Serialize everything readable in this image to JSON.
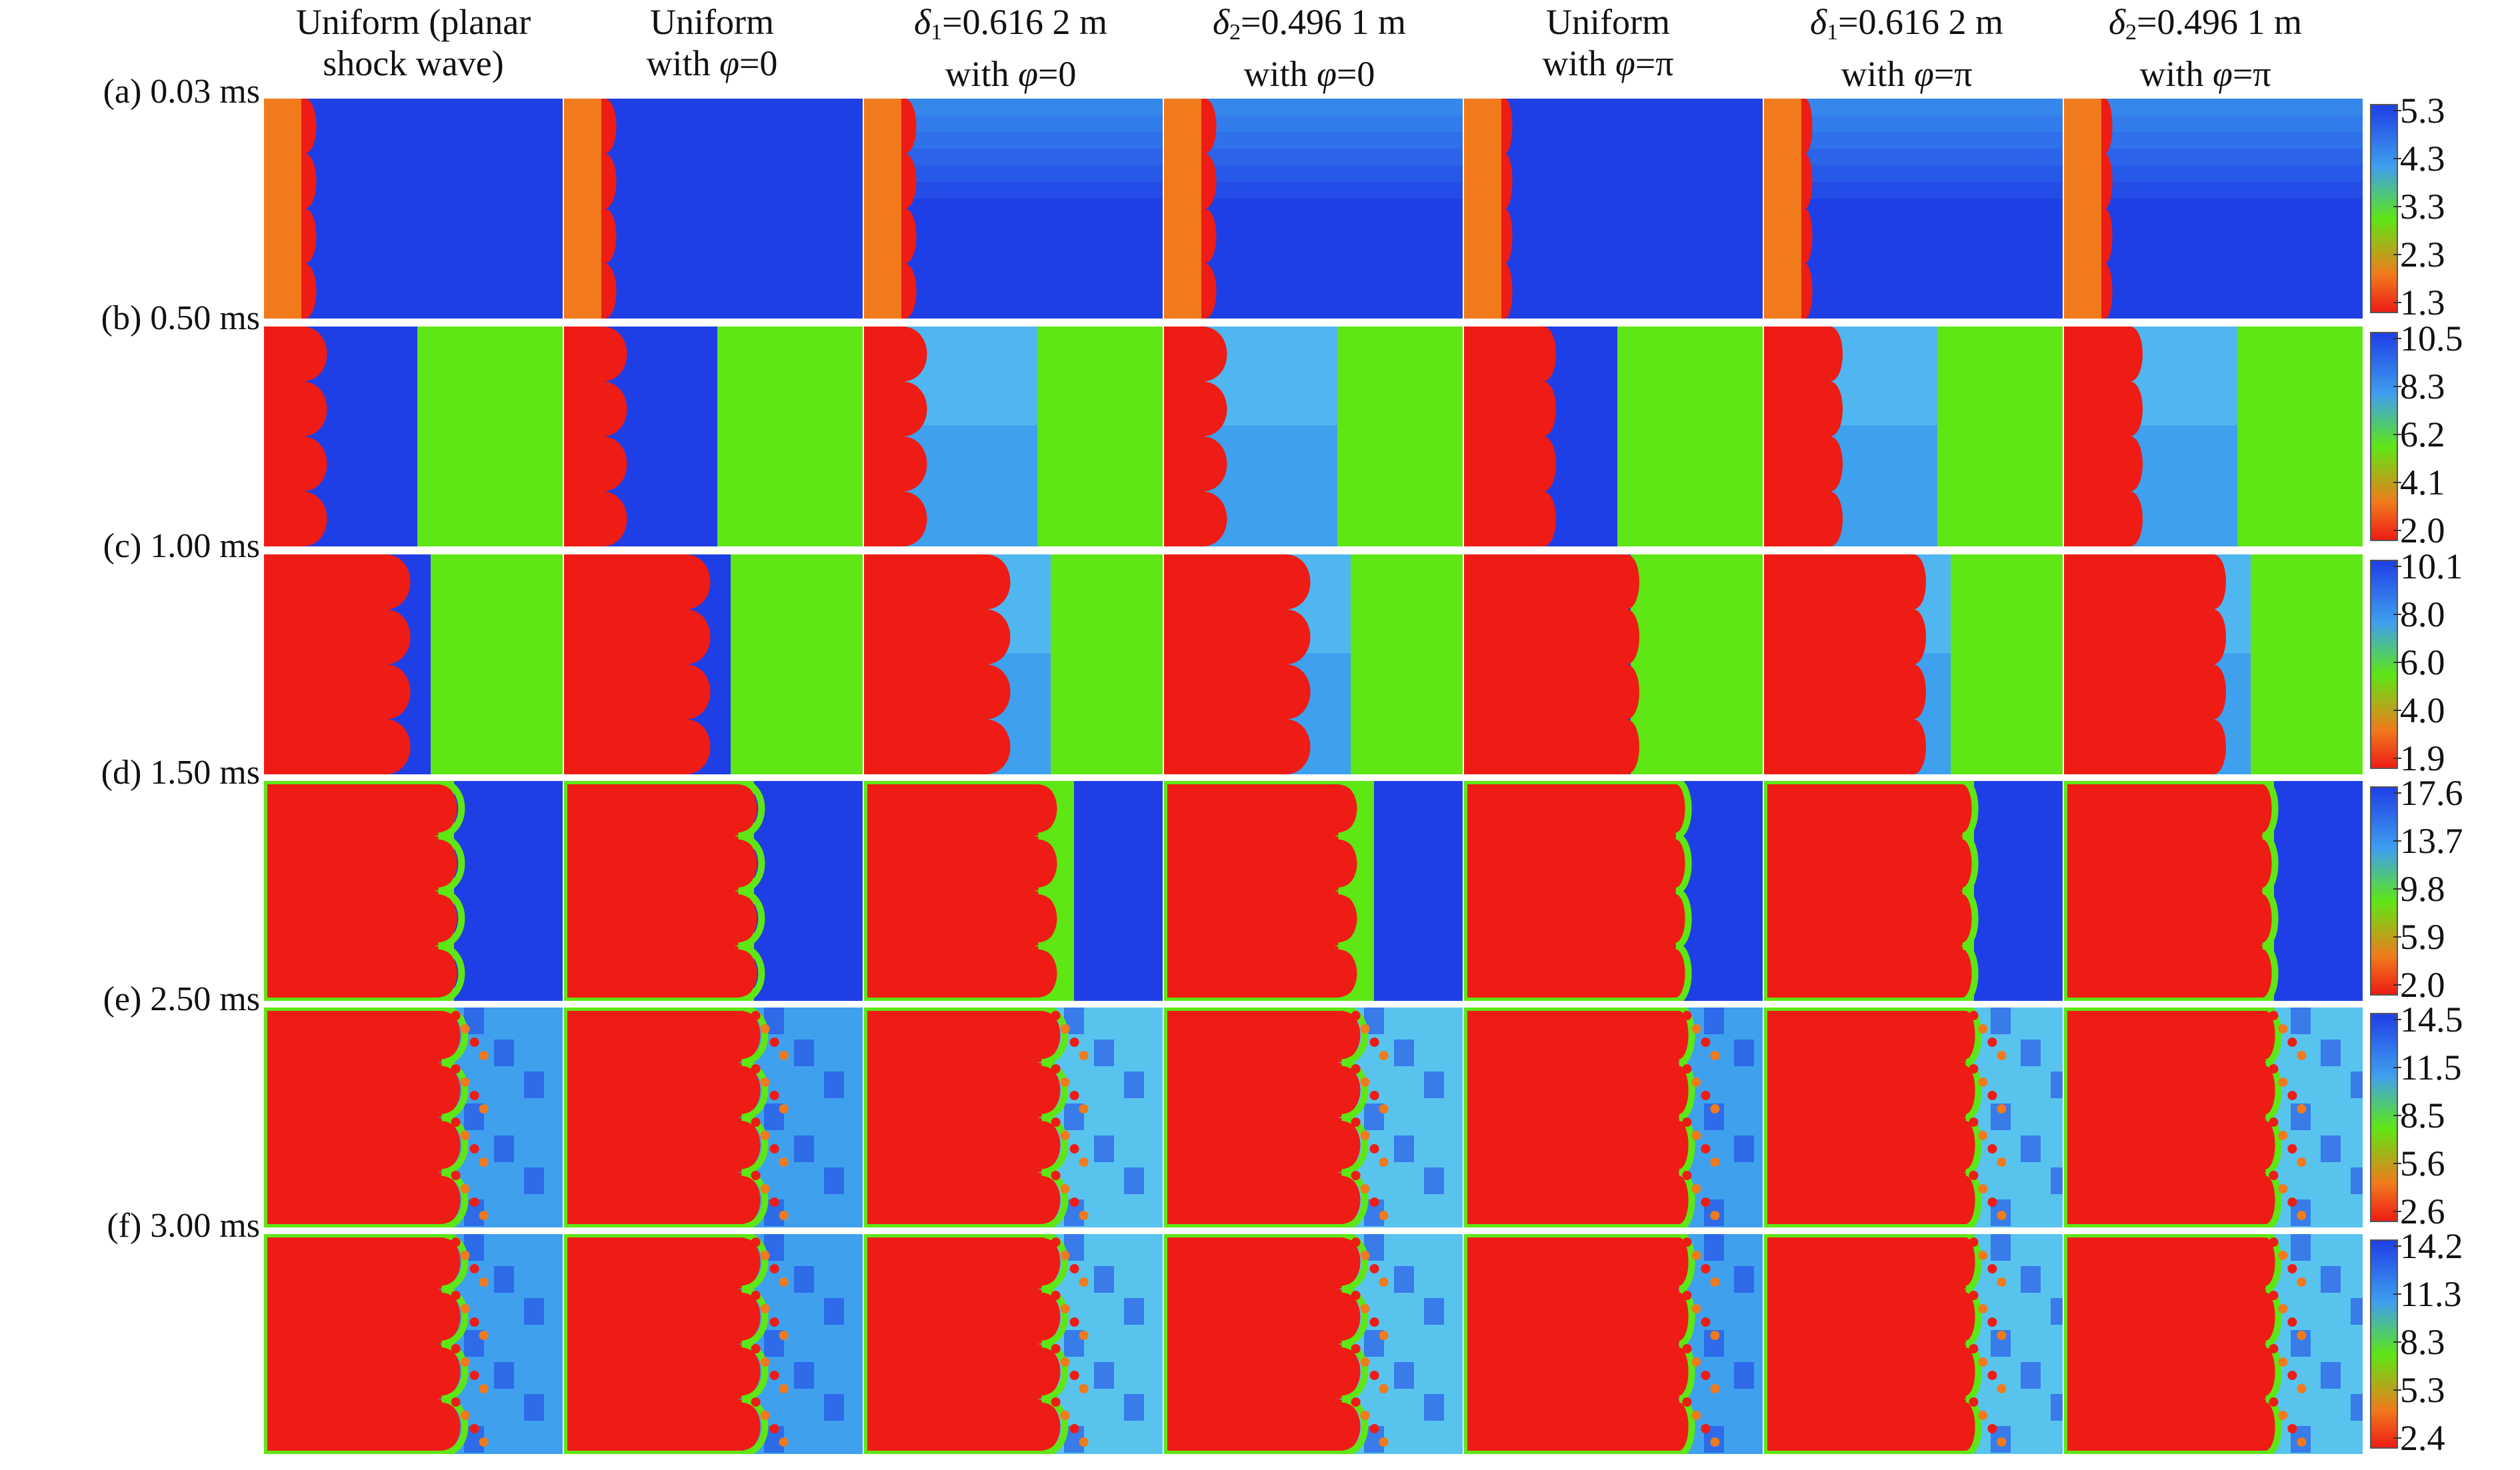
{
  "columns": [
    {
      "line1": "Uniform (planar",
      "line2": "shock wave)"
    },
    {
      "line1": "Uniform",
      "line2_pre": "with ",
      "line2_var": "φ",
      "line2_post": "=0"
    },
    {
      "line1_var": "δ",
      "line1_sub": "1",
      "line1_post": "=0.616 2 m",
      "line2_pre": "with ",
      "line2_var": "φ",
      "line2_post": "=0"
    },
    {
      "line1_var": "δ",
      "line1_sub": "2",
      "line1_post": "=0.496 1 m",
      "line2_pre": "with ",
      "line2_var": "φ",
      "line2_post": "=0"
    },
    {
      "line1": "Uniform",
      "line2_pre": "with ",
      "line2_var": "φ",
      "line2_post": "=π"
    },
    {
      "line1_var": "δ",
      "line1_sub": "1",
      "line1_post": "=0.616 2 m",
      "line2_pre": "with ",
      "line2_var": "φ",
      "line2_post": "=π"
    },
    {
      "line1_var": "δ",
      "line1_sub": "2",
      "line1_post": "=0.496 1 m",
      "line2_pre": "with ",
      "line2_var": "φ",
      "line2_post": "=π"
    }
  ],
  "rows": [
    {
      "label": "(a) 0.03 ms",
      "colorbar_ticks": [
        "5.3",
        "4.3",
        "3.3",
        "2.3",
        "1.3"
      ]
    },
    {
      "label": "(b) 0.50 ms",
      "colorbar_ticks": [
        "10.5",
        "8.3",
        "6.2",
        "4.1",
        "2.0"
      ]
    },
    {
      "label": "(c) 1.00 ms",
      "colorbar_ticks": [
        "10.1",
        "8.0",
        "6.0",
        "4.0",
        "1.9"
      ]
    },
    {
      "label": "(d) 1.50 ms",
      "colorbar_ticks": [
        "17.6",
        "13.7",
        "9.8",
        "5.9",
        "2.0"
      ]
    },
    {
      "label": "(e) 2.50 ms",
      "colorbar_ticks": [
        "14.5",
        "11.5",
        "8.5",
        "5.6",
        "2.6"
      ]
    },
    {
      "label": "(f) 3.00 ms",
      "colorbar_ticks": [
        "14.2",
        "11.3",
        "8.3",
        "5.3",
        "2.4"
      ]
    }
  ],
  "colors": {
    "high": "#1f3fe6",
    "upper": "#3fa0ee",
    "mid": "#5ee615",
    "low": "#f07a1c",
    "min": "#ee1c14"
  }
}
